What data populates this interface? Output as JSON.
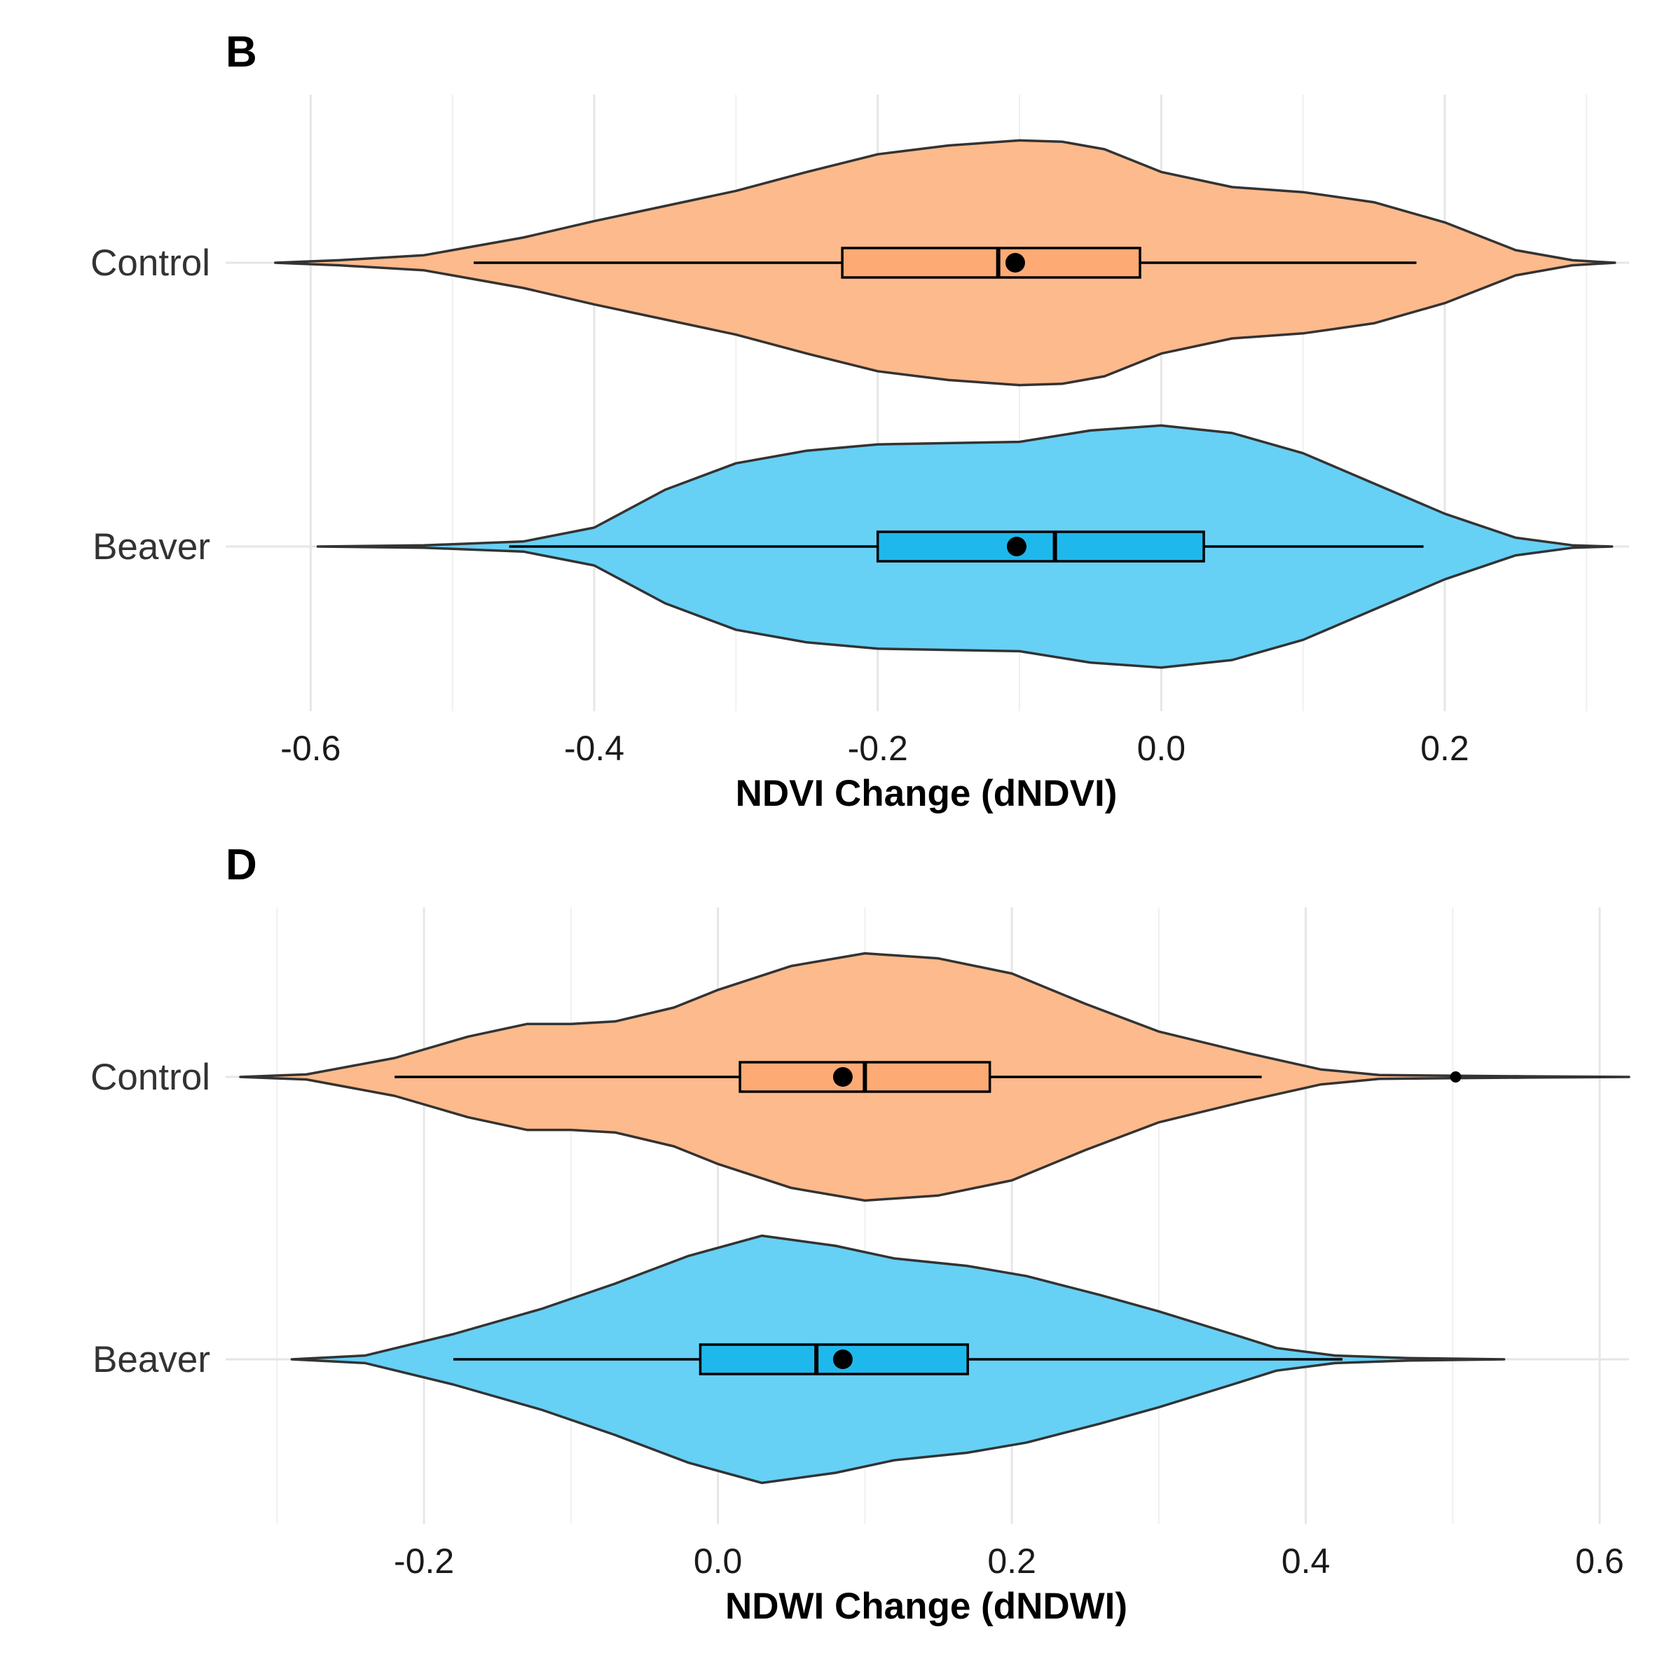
{
  "chart_data": [
    {
      "type": "violin",
      "panel": "B",
      "xlabel": "NDVI Change (dNDVI)",
      "ylabel": "",
      "xlim": [
        -0.66,
        0.33
      ],
      "xticks": [
        -0.6,
        -0.4,
        -0.2,
        0.0,
        0.2
      ],
      "xtick_labels": [
        "-0.6",
        "-0.4",
        "-0.2",
        "0.0",
        "0.2"
      ],
      "grid": true,
      "categories": [
        "Control",
        "Beaver"
      ],
      "series": [
        {
          "name": "Control",
          "color": "#FDBA8C",
          "box_color": "#FDAA74",
          "density": [
            [
              -0.625,
              0.0
            ],
            [
              -0.58,
              0.02
            ],
            [
              -0.52,
              0.06
            ],
            [
              -0.45,
              0.2
            ],
            [
              -0.4,
              0.33
            ],
            [
              -0.35,
              0.45
            ],
            [
              -0.3,
              0.57
            ],
            [
              -0.25,
              0.72
            ],
            [
              -0.2,
              0.86
            ],
            [
              -0.15,
              0.93
            ],
            [
              -0.1,
              0.97
            ],
            [
              -0.07,
              0.96
            ],
            [
              -0.04,
              0.9
            ],
            [
              0.0,
              0.72
            ],
            [
              0.05,
              0.6
            ],
            [
              0.1,
              0.56
            ],
            [
              0.15,
              0.48
            ],
            [
              0.2,
              0.32
            ],
            [
              0.25,
              0.1
            ],
            [
              0.29,
              0.02
            ],
            [
              0.32,
              0.0
            ]
          ],
          "whisker_low": -0.485,
          "q1": -0.225,
          "median": -0.115,
          "q3": -0.015,
          "whisker_high": 0.18,
          "mean": -0.103,
          "outliers": []
        },
        {
          "name": "Beaver",
          "color": "#67D0F5",
          "box_color": "#1FB8EC",
          "density": [
            [
              -0.595,
              0.0
            ],
            [
              -0.52,
              0.01
            ],
            [
              -0.45,
              0.04
            ],
            [
              -0.4,
              0.15
            ],
            [
              -0.35,
              0.45
            ],
            [
              -0.3,
              0.66
            ],
            [
              -0.25,
              0.76
            ],
            [
              -0.2,
              0.81
            ],
            [
              -0.15,
              0.82
            ],
            [
              -0.1,
              0.83
            ],
            [
              -0.05,
              0.92
            ],
            [
              0.0,
              0.96
            ],
            [
              0.05,
              0.9
            ],
            [
              0.1,
              0.74
            ],
            [
              0.15,
              0.5
            ],
            [
              0.2,
              0.26
            ],
            [
              0.25,
              0.07
            ],
            [
              0.29,
              0.01
            ],
            [
              0.318,
              0.0
            ]
          ],
          "whisker_low": -0.46,
          "q1": -0.2,
          "median": -0.075,
          "q3": 0.03,
          "whisker_high": 0.185,
          "mean": -0.102,
          "outliers": []
        }
      ]
    },
    {
      "type": "violin",
      "panel": "D",
      "xlabel": "NDWI Change (dNDWI)",
      "ylabel": "",
      "xlim": [
        -0.335,
        0.62
      ],
      "xticks": [
        -0.2,
        0.0,
        0.2,
        0.4,
        0.6
      ],
      "xtick_labels": [
        "-0.2",
        "0.0",
        "0.2",
        "0.4",
        "0.6"
      ],
      "grid": true,
      "categories": [
        "Control",
        "Beaver"
      ],
      "series": [
        {
          "name": "Control",
          "color": "#FDBA8C",
          "box_color": "#FDAA74",
          "density": [
            [
              -0.325,
              0.0
            ],
            [
              -0.28,
              0.02
            ],
            [
              -0.22,
              0.15
            ],
            [
              -0.17,
              0.32
            ],
            [
              -0.13,
              0.42
            ],
            [
              -0.1,
              0.42
            ],
            [
              -0.07,
              0.44
            ],
            [
              -0.03,
              0.55
            ],
            [
              0.0,
              0.69
            ],
            [
              0.05,
              0.88
            ],
            [
              0.1,
              0.98
            ],
            [
              0.15,
              0.94
            ],
            [
              0.2,
              0.82
            ],
            [
              0.25,
              0.58
            ],
            [
              0.3,
              0.36
            ],
            [
              0.36,
              0.19
            ],
            [
              0.41,
              0.06
            ],
            [
              0.45,
              0.015
            ],
            [
              0.5,
              0.01
            ],
            [
              0.55,
              0.005
            ],
            [
              0.62,
              0.0
            ]
          ],
          "whisker_low": -0.22,
          "q1": 0.015,
          "median": 0.1,
          "q3": 0.185,
          "whisker_high": 0.37,
          "mean": 0.085,
          "outliers": [
            0.502
          ]
        },
        {
          "name": "Beaver",
          "color": "#67D0F5",
          "box_color": "#1FB8EC",
          "density": [
            [
              -0.29,
              0.0
            ],
            [
              -0.24,
              0.03
            ],
            [
              -0.18,
              0.2
            ],
            [
              -0.12,
              0.4
            ],
            [
              -0.07,
              0.6
            ],
            [
              -0.02,
              0.82
            ],
            [
              0.03,
              0.98
            ],
            [
              0.08,
              0.9
            ],
            [
              0.12,
              0.8
            ],
            [
              0.17,
              0.74
            ],
            [
              0.21,
              0.66
            ],
            [
              0.26,
              0.51
            ],
            [
              0.3,
              0.38
            ],
            [
              0.35,
              0.2
            ],
            [
              0.38,
              0.09
            ],
            [
              0.42,
              0.03
            ],
            [
              0.47,
              0.01
            ],
            [
              0.535,
              0.0
            ]
          ],
          "whisker_low": -0.18,
          "q1": -0.012,
          "median": 0.067,
          "q3": 0.17,
          "whisker_high": 0.425,
          "mean": 0.085,
          "outliers": []
        }
      ]
    }
  ]
}
